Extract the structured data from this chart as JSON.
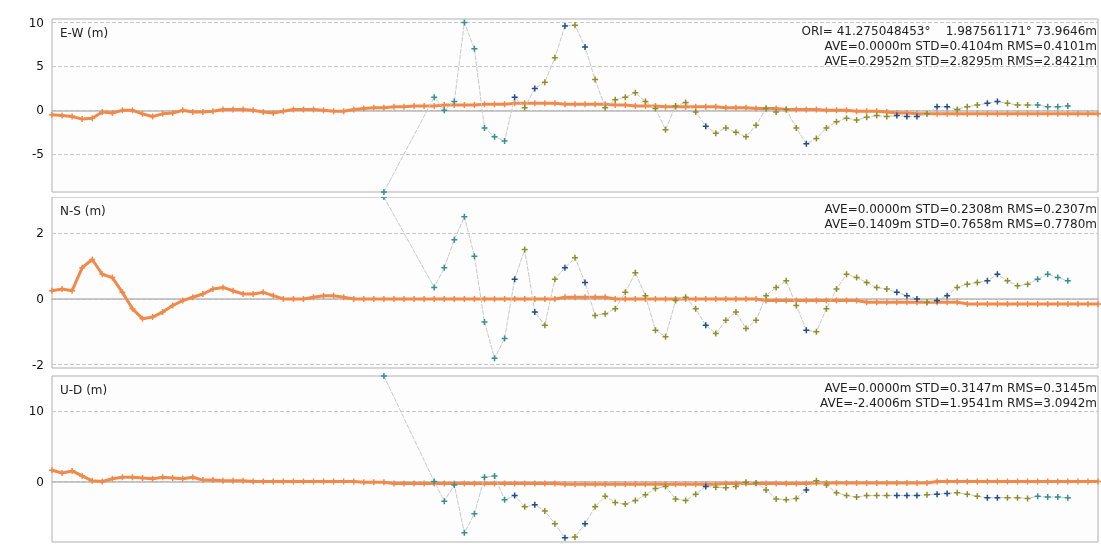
{
  "chart_data": [
    {
      "type": "line",
      "ylabel": "E-W (m)",
      "annotations": [
        "ORI= 41.275048453°    1.987561171° 73.9646m",
        "AVE=0.0000m STD=0.4104m RMS=0.4101m",
        "AVE=0.2952m STD=2.8295m RMS=2.8421m"
      ],
      "categories": [
        null,
        null,
        null,
        null,
        null,
        null,
        null,
        null,
        null,
        null,
        null,
        null,
        null,
        null,
        null,
        null,
        null,
        null,
        null,
        null,
        null,
        null,
        null,
        null,
        null,
        null,
        null,
        null,
        null,
        null,
        null,
        null,
        null,
        null,
        null,
        null,
        null,
        null,
        null,
        null,
        null,
        null,
        null,
        null,
        null,
        null,
        null,
        null,
        null,
        null,
        null,
        null,
        null,
        null,
        null,
        null,
        null,
        null,
        null,
        null,
        null,
        null,
        null,
        null,
        null,
        null,
        null,
        null,
        null,
        null,
        null,
        null,
        null,
        null,
        null,
        null,
        null,
        null,
        null,
        null,
        null,
        null,
        null,
        null,
        null,
        null,
        null,
        null,
        null,
        null,
        null,
        null,
        null,
        null,
        null,
        null,
        null,
        null,
        null,
        null,
        null,
        null,
        null,
        null,
        null
      ],
      "series": [
        {
          "color": "#f08a4b",
          "line_style": "solid",
          "values": [
            -0.5,
            -0.6,
            -0.7,
            -1.0,
            -0.9,
            -0.2,
            -0.3,
            0,
            0,
            -0.4,
            -0.7,
            -0.4,
            -0.3,
            0,
            -0.2,
            -0.2,
            -0.1,
            0.1,
            0.1,
            0.1,
            0,
            -0.2,
            -0.3,
            -0.1,
            0.1,
            0.1,
            0.1,
            0,
            -0.1,
            -0.1,
            0.1,
            0.2,
            0.3,
            0.3,
            0.4,
            0.4,
            0.5,
            0.5,
            0.5,
            0.6,
            0.6,
            0.6,
            0.6,
            0.7,
            0.7,
            0.7,
            0.8,
            0.8,
            0.8,
            0.8,
            0.8,
            0.7,
            0.7,
            0.7,
            0.7,
            0.7,
            0.6,
            0.6,
            0.5,
            0.5,
            0.5,
            0.4,
            0.4,
            0.4,
            0.4,
            0.4,
            0.4,
            0.3,
            0.3,
            0.3,
            0.2,
            0.2,
            0.2,
            0.1,
            0.1,
            0.1,
            0.1,
            0,
            0,
            0,
            -0.1,
            -0.1,
            -0.1,
            -0.2,
            -0.3,
            -0.3,
            -0.4,
            -0.4,
            -0.4,
            -0.4,
            -0.4,
            -0.4,
            -0.4,
            -0.4,
            -0.4,
            -0.4,
            -0.4,
            -0.4,
            -0.4,
            -0.4,
            -0.4,
            -0.4,
            -0.4,
            -0.4,
            -0.4
          ]
        },
        {
          "line_style": "dashed",
          "values": [
            null,
            null,
            null,
            null,
            null,
            null,
            null,
            null,
            null,
            null,
            null,
            null,
            null,
            null,
            null,
            null,
            null,
            null,
            null,
            null,
            null,
            null,
            null,
            null,
            null,
            null,
            null,
            null,
            null,
            null,
            null,
            null,
            null,
            -9.3,
            null,
            null,
            null,
            null,
            1.5,
            0,
            1,
            10,
            7,
            -2,
            -3,
            -3.5,
            1.5,
            0.3,
            2.5,
            3.2,
            6,
            9.6,
            9.7,
            7.2,
            3.5,
            0.3,
            1.2,
            1.5,
            2.0,
            1.0,
            0.2,
            -2.2,
            0.5,
            0.9,
            -0.2,
            -1.8,
            -2.6,
            -2.0,
            -2.5,
            -3.0,
            -1.7,
            0.2,
            -0.2,
            0.1,
            -2.0,
            -3.8,
            -3.2,
            -2.0,
            -1.3,
            -0.9,
            -1.1,
            -0.8,
            -0.6,
            -0.7,
            -0.6,
            -0.7,
            -0.7,
            -0.4,
            0.4,
            0.4,
            0.1,
            0.4,
            0.6,
            0.8,
            1.0,
            0.8,
            0.6,
            0.6,
            0.6,
            0.4,
            0.4,
            0.5,
            null,
            null,
            null
          ],
          "colors": [
            null,
            null,
            null,
            null,
            null,
            null,
            null,
            null,
            null,
            null,
            null,
            null,
            null,
            null,
            null,
            null,
            null,
            null,
            null,
            null,
            null,
            null,
            null,
            null,
            null,
            null,
            null,
            null,
            null,
            null,
            null,
            null,
            null,
            "#35908f",
            null,
            null,
            null,
            null,
            "#35908f",
            "#35908f",
            "#35908f",
            "#35908f",
            "#35908f",
            "#35908f",
            "#35908f",
            "#35908f",
            "#1f4e8e",
            "#8f8f2a",
            "#1f4e8e",
            "#8f8f2a",
            "#8f8f2a",
            "#1f4e8e",
            "#8f8f2a",
            "#1f4e8e",
            "#8f8f2a",
            "#8f8f2a",
            "#8f8f2a",
            "#8f8f2a",
            "#8f8f2a",
            "#8f8f2a",
            "#8f8f2a",
            "#8f8f2a",
            "#8f8f2a",
            "#8f8f2a",
            "#8f8f2a",
            "#1f4e8e",
            "#8f8f2a",
            "#8f8f2a",
            "#8f8f2a",
            "#8f8f2a",
            "#8f8f2a",
            "#8f8f2a",
            "#8f8f2a",
            "#8f8f2a",
            "#8f8f2a",
            "#1f4e8e",
            "#8f8f2a",
            "#8f8f2a",
            "#8f8f2a",
            "#8f8f2a",
            "#8f8f2a",
            "#8f8f2a",
            "#8f8f2a",
            "#8f8f2a",
            "#1f4e8e",
            "#1f4e8e",
            "#1f4e8e",
            "#8f8f2a",
            "#1f4e8e",
            "#1f4e8e",
            "#8f8f2a",
            "#8f8f2a",
            "#8f8f2a",
            "#1f4e8e",
            "#1f4e8e",
            "#8f8f2a",
            "#8f8f2a",
            "#8f8f2a",
            "#35908f",
            "#35908f",
            "#35908f",
            "#35908f",
            null,
            null,
            null
          ]
        }
      ],
      "ylim": [
        -9.3,
        10.4
      ],
      "yticks": [
        -5,
        0,
        5,
        10
      ],
      "grid": "y",
      "marker": "cross"
    },
    {
      "type": "line",
      "ylabel": "N-S (m)",
      "annotations": [
        "AVE=0.0000m STD=0.2308m RMS=0.2307m",
        "AVE=0.1409m STD=0.7658m RMS=0.7780m"
      ],
      "categories": [
        null,
        null,
        null,
        null,
        null,
        null,
        null,
        null,
        null,
        null,
        null,
        null,
        null,
        null,
        null,
        null,
        null,
        null,
        null,
        null,
        null,
        null,
        null,
        null,
        null,
        null,
        null,
        null,
        null,
        null,
        null,
        null,
        null,
        null,
        null,
        null,
        null,
        null,
        null,
        null,
        null,
        null,
        null,
        null,
        null,
        null,
        null,
        null,
        null,
        null,
        null,
        null,
        null,
        null,
        null,
        null,
        null,
        null,
        null,
        null,
        null,
        null,
        null,
        null,
        null,
        null,
        null,
        null,
        null,
        null,
        null,
        null,
        null,
        null,
        null,
        null,
        null,
        null,
        null,
        null,
        null,
        null,
        null,
        null,
        null,
        null,
        null,
        null,
        null,
        null,
        null,
        null,
        null,
        null,
        null,
        null,
        null,
        null,
        null,
        null,
        null,
        null,
        null,
        null,
        null
      ],
      "series": [
        {
          "color": "#f08a4b",
          "line_style": "solid",
          "values": [
            0.25,
            0.3,
            0.25,
            0.95,
            1.2,
            0.75,
            0.65,
            0.2,
            -0.3,
            -0.6,
            -0.55,
            -0.4,
            -0.2,
            -0.05,
            0.05,
            0.15,
            0.3,
            0.35,
            0.25,
            0.15,
            0.15,
            0.2,
            0.1,
            0,
            0,
            0,
            0.05,
            0.1,
            0.1,
            0.05,
            0,
            0,
            0,
            0,
            0,
            0,
            0,
            0,
            0,
            0,
            0,
            0,
            0,
            0,
            0,
            0,
            0,
            0,
            0,
            0,
            0,
            0.05,
            0.05,
            0.05,
            0.05,
            0.05,
            0,
            0,
            0,
            0,
            0,
            0,
            0,
            0,
            0,
            0,
            0,
            0,
            0,
            0,
            0,
            -0.05,
            -0.05,
            -0.05,
            -0.05,
            -0.05,
            -0.05,
            -0.05,
            -0.05,
            -0.05,
            -0.05,
            -0.1,
            -0.1,
            -0.1,
            -0.1,
            -0.1,
            -0.1,
            -0.1,
            -0.1,
            -0.1,
            -0.1,
            -0.15,
            -0.15,
            -0.15,
            -0.15,
            -0.15,
            -0.15,
            -0.15,
            -0.15,
            -0.15,
            -0.15,
            -0.15,
            -0.15,
            -0.15,
            -0.15
          ]
        },
        {
          "line_style": "dashed",
          "values": [
            null,
            null,
            null,
            null,
            null,
            null,
            null,
            null,
            null,
            null,
            null,
            null,
            null,
            null,
            null,
            null,
            null,
            null,
            null,
            null,
            null,
            null,
            null,
            null,
            null,
            null,
            null,
            null,
            null,
            null,
            null,
            null,
            null,
            3.1,
            null,
            null,
            null,
            null,
            0.35,
            0.95,
            1.8,
            2.5,
            1.3,
            -0.7,
            -1.8,
            -1.2,
            0.6,
            1.5,
            -0.4,
            -0.8,
            0.6,
            0.95,
            1.25,
            0.5,
            -0.5,
            -0.45,
            -0.3,
            0.2,
            0.8,
            0.1,
            -0.95,
            -1.15,
            -0.05,
            0.05,
            -0.3,
            -0.8,
            -1.05,
            -0.65,
            -0.4,
            -0.9,
            -0.65,
            0.1,
            0.35,
            0.55,
            -0.2,
            -0.95,
            -1.0,
            -0.3,
            0.3,
            0.75,
            0.65,
            0.5,
            0.35,
            0.3,
            0.2,
            0.1,
            0,
            -0.1,
            -0.05,
            0.1,
            0.35,
            0.45,
            0.5,
            0.55,
            0.75,
            0.55,
            0.4,
            0.45,
            0.6,
            0.75,
            0.65,
            0.55,
            null,
            null,
            null
          ],
          "colors": [
            null,
            null,
            null,
            null,
            null,
            null,
            null,
            null,
            null,
            null,
            null,
            null,
            null,
            null,
            null,
            null,
            null,
            null,
            null,
            null,
            null,
            null,
            null,
            null,
            null,
            null,
            null,
            null,
            null,
            null,
            null,
            null,
            null,
            "#35908f",
            null,
            null,
            null,
            null,
            "#35908f",
            "#35908f",
            "#35908f",
            "#35908f",
            "#35908f",
            "#35908f",
            "#35908f",
            "#35908f",
            "#1f4e8e",
            "#8f8f2a",
            "#1f4e8e",
            "#8f8f2a",
            "#8f8f2a",
            "#1f4e8e",
            "#8f8f2a",
            "#1f4e8e",
            "#8f8f2a",
            "#8f8f2a",
            "#8f8f2a",
            "#8f8f2a",
            "#8f8f2a",
            "#8f8f2a",
            "#8f8f2a",
            "#8f8f2a",
            "#8f8f2a",
            "#8f8f2a",
            "#8f8f2a",
            "#1f4e8e",
            "#8f8f2a",
            "#8f8f2a",
            "#8f8f2a",
            "#8f8f2a",
            "#8f8f2a",
            "#8f8f2a",
            "#8f8f2a",
            "#8f8f2a",
            "#8f8f2a",
            "#1f4e8e",
            "#8f8f2a",
            "#8f8f2a",
            "#8f8f2a",
            "#8f8f2a",
            "#8f8f2a",
            "#8f8f2a",
            "#8f8f2a",
            "#8f8f2a",
            "#1f4e8e",
            "#1f4e8e",
            "#1f4e8e",
            "#8f8f2a",
            "#1f4e8e",
            "#1f4e8e",
            "#8f8f2a",
            "#8f8f2a",
            "#8f8f2a",
            "#1f4e8e",
            "#1f4e8e",
            "#8f8f2a",
            "#8f8f2a",
            "#8f8f2a",
            "#35908f",
            "#35908f",
            "#35908f",
            "#35908f",
            null,
            null,
            null
          ]
        }
      ],
      "ylim": [
        -2.1,
        3.1
      ],
      "yticks": [
        -2,
        0,
        2
      ],
      "grid": "y",
      "marker": "cross"
    },
    {
      "type": "line",
      "ylabel": "U-D (m)",
      "annotations": [
        "AVE=0.0000m STD=0.3147m RMS=0.3145m",
        "AVE=-2.4006m STD=1.9541m RMS=3.0942m"
      ],
      "categories": [
        null,
        null,
        null,
        null,
        null,
        null,
        null,
        null,
        null,
        null,
        null,
        null,
        null,
        null,
        null,
        null,
        null,
        null,
        null,
        null,
        null,
        null,
        null,
        null,
        null,
        null,
        null,
        null,
        null,
        null,
        null,
        null,
        null,
        null,
        null,
        null,
        null,
        null,
        null,
        null,
        null,
        null,
        null,
        null,
        null,
        null,
        null,
        null,
        null,
        null,
        null,
        null,
        null,
        null,
        null,
        null,
        null,
        null,
        null,
        null,
        null,
        null,
        null,
        null,
        null,
        null,
        null,
        null,
        null,
        null,
        null,
        null,
        null,
        null,
        null,
        null,
        null,
        null,
        null,
        null,
        null,
        null,
        null,
        null,
        null,
        null,
        null,
        null,
        null,
        null,
        null,
        null,
        null,
        null,
        null,
        null,
        null,
        null,
        null,
        null,
        null,
        null,
        null,
        null,
        null
      ],
      "series": [
        {
          "color": "#f08a4b",
          "line_style": "solid",
          "values": [
            1.6,
            1.2,
            1.5,
            0.8,
            0.1,
            0,
            0.4,
            0.6,
            0.6,
            0.5,
            0.4,
            0.6,
            0.5,
            0.4,
            0.6,
            0.2,
            0.2,
            0.1,
            0.1,
            0.1,
            0,
            0,
            0,
            0,
            0,
            0,
            0,
            0,
            0,
            0,
            0,
            -0.1,
            -0.1,
            -0.1,
            -0.3,
            -0.3,
            -0.3,
            -0.3,
            -0.3,
            -0.3,
            -0.3,
            -0.3,
            -0.3,
            -0.3,
            -0.3,
            -0.3,
            -0.3,
            -0.3,
            -0.3,
            -0.3,
            -0.3,
            -0.4,
            -0.4,
            -0.4,
            -0.4,
            -0.4,
            -0.4,
            -0.4,
            -0.4,
            -0.4,
            -0.4,
            -0.4,
            -0.4,
            -0.4,
            -0.4,
            -0.4,
            -0.4,
            -0.3,
            -0.3,
            -0.3,
            -0.3,
            -0.3,
            -0.3,
            -0.3,
            -0.3,
            -0.3,
            -0.2,
            -0.2,
            -0.2,
            -0.2,
            -0.2,
            -0.2,
            -0.2,
            -0.2,
            -0.2,
            -0.2,
            -0.2,
            -0.2,
            0,
            0,
            0,
            0,
            0,
            0,
            0,
            0,
            0,
            0,
            0,
            0,
            0,
            0,
            0,
            0,
            0
          ]
        },
        {
          "line_style": "dashed",
          "values": [
            null,
            null,
            null,
            null,
            null,
            null,
            null,
            null,
            null,
            null,
            null,
            null,
            null,
            null,
            null,
            null,
            null,
            null,
            null,
            null,
            null,
            null,
            null,
            null,
            null,
            null,
            null,
            null,
            null,
            null,
            null,
            null,
            null,
            15,
            null,
            null,
            null,
            null,
            0,
            -2.8,
            -0.5,
            -7.3,
            -4.6,
            0.6,
            0.8,
            -2.6,
            -2.0,
            -3.6,
            -3.3,
            -4.2,
            -6.0,
            -8.0,
            -7.9,
            -6.0,
            -3.6,
            -2.1,
            -3.0,
            -3.2,
            -2.7,
            -1.9,
            -1.0,
            -0.7,
            -2.5,
            -2.7,
            -1.8,
            -0.7,
            -0.8,
            -0.9,
            -0.7,
            -0.1,
            -0.2,
            -1.2,
            -2.5,
            -2.6,
            -2.4,
            -1.2,
            0.1,
            -0.5,
            -1.6,
            -2.0,
            -2.2,
            -2.0,
            -2.0,
            -2.0,
            -2.0,
            -2.0,
            -2.0,
            -1.9,
            -1.8,
            -1.7,
            -1.6,
            -1.8,
            -2.1,
            -2.3,
            -2.3,
            -2.3,
            -2.3,
            -2.4,
            -2.1,
            -2.2,
            -2.2,
            -2.3,
            null,
            null,
            null
          ],
          "colors": [
            null,
            null,
            null,
            null,
            null,
            null,
            null,
            null,
            null,
            null,
            null,
            null,
            null,
            null,
            null,
            null,
            null,
            null,
            null,
            null,
            null,
            null,
            null,
            null,
            null,
            null,
            null,
            null,
            null,
            null,
            null,
            null,
            null,
            "#35908f",
            null,
            null,
            null,
            null,
            "#35908f",
            "#35908f",
            "#35908f",
            "#35908f",
            "#35908f",
            "#35908f",
            "#35908f",
            "#35908f",
            "#1f4e8e",
            "#8f8f2a",
            "#1f4e8e",
            "#8f8f2a",
            "#8f8f2a",
            "#1f4e8e",
            "#8f8f2a",
            "#1f4e8e",
            "#8f8f2a",
            "#8f8f2a",
            "#8f8f2a",
            "#8f8f2a",
            "#8f8f2a",
            "#8f8f2a",
            "#8f8f2a",
            "#8f8f2a",
            "#8f8f2a",
            "#8f8f2a",
            "#8f8f2a",
            "#1f4e8e",
            "#8f8f2a",
            "#8f8f2a",
            "#8f8f2a",
            "#8f8f2a",
            "#8f8f2a",
            "#8f8f2a",
            "#8f8f2a",
            "#8f8f2a",
            "#8f8f2a",
            "#1f4e8e",
            "#8f8f2a",
            "#8f8f2a",
            "#8f8f2a",
            "#8f8f2a",
            "#8f8f2a",
            "#8f8f2a",
            "#8f8f2a",
            "#8f8f2a",
            "#1f4e8e",
            "#1f4e8e",
            "#1f4e8e",
            "#8f8f2a",
            "#1f4e8e",
            "#1f4e8e",
            "#8f8f2a",
            "#8f8f2a",
            "#8f8f2a",
            "#1f4e8e",
            "#1f4e8e",
            "#8f8f2a",
            "#8f8f2a",
            "#8f8f2a",
            "#35908f",
            "#35908f",
            "#35908f",
            "#35908f",
            null,
            null,
            null
          ]
        }
      ],
      "ylim": [
        -8.6,
        15
      ],
      "yticks": [
        0,
        10
      ],
      "grid": "y",
      "marker": "cross"
    }
  ]
}
